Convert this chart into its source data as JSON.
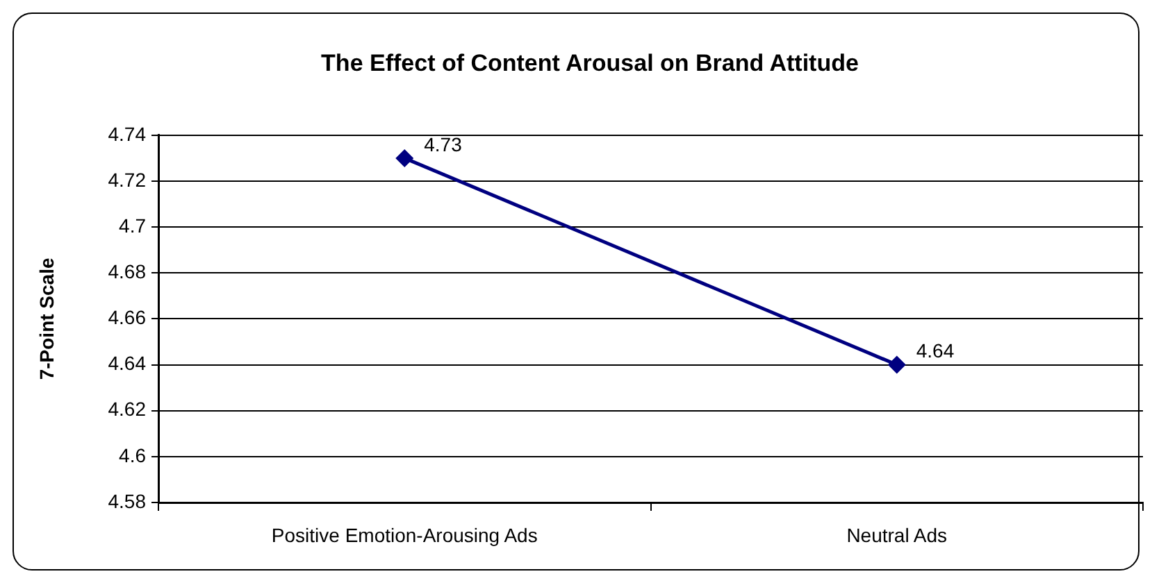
{
  "chart_data": {
    "type": "line",
    "title": "The Effect of Content Arousal on Brand Attitude",
    "ylabel": "7-Point Scale",
    "categories": [
      "Positive Emotion-Arousing Ads",
      "Neutral Ads"
    ],
    "series": [
      {
        "color": "#000080",
        "values": [
          4.73,
          4.64
        ]
      }
    ],
    "ylim": [
      4.58,
      4.74
    ],
    "yticks": [
      4.58,
      4.6,
      4.62,
      4.64,
      4.66,
      4.68,
      4.7,
      4.72,
      4.74
    ],
    "grid": "y",
    "legend": false,
    "marker": "diamond",
    "line_style": "solid",
    "data_labels": true
  }
}
